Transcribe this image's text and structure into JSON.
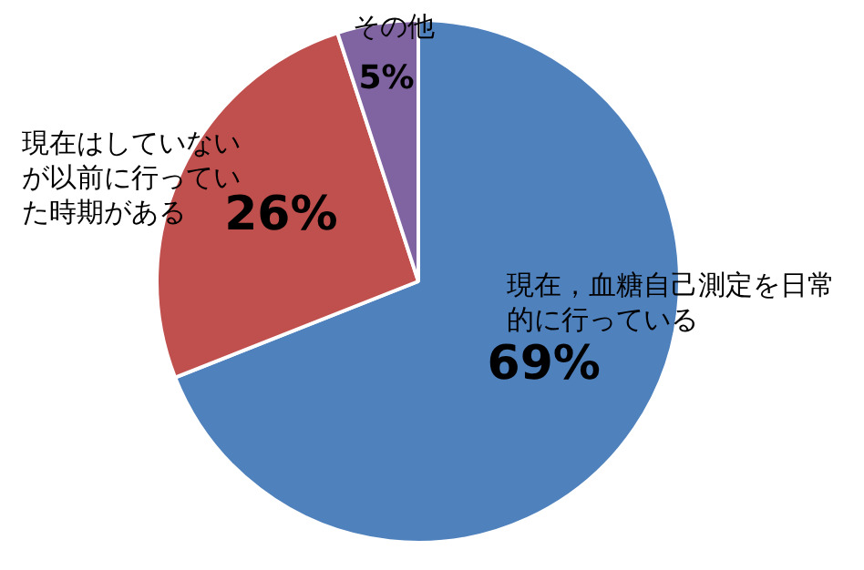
{
  "chart_data": {
    "type": "pie",
    "categories": [
      "現在，血糖自己測定を日常的に行っている",
      "現在はしていないが以前に行っていた時期がある",
      "その他"
    ],
    "values": [
      69,
      26,
      5
    ],
    "value_labels": [
      "69%",
      "26%",
      "5%"
    ],
    "colors": [
      "#4f81bd",
      "#c0504d",
      "#8064a2"
    ],
    "legend": false
  }
}
